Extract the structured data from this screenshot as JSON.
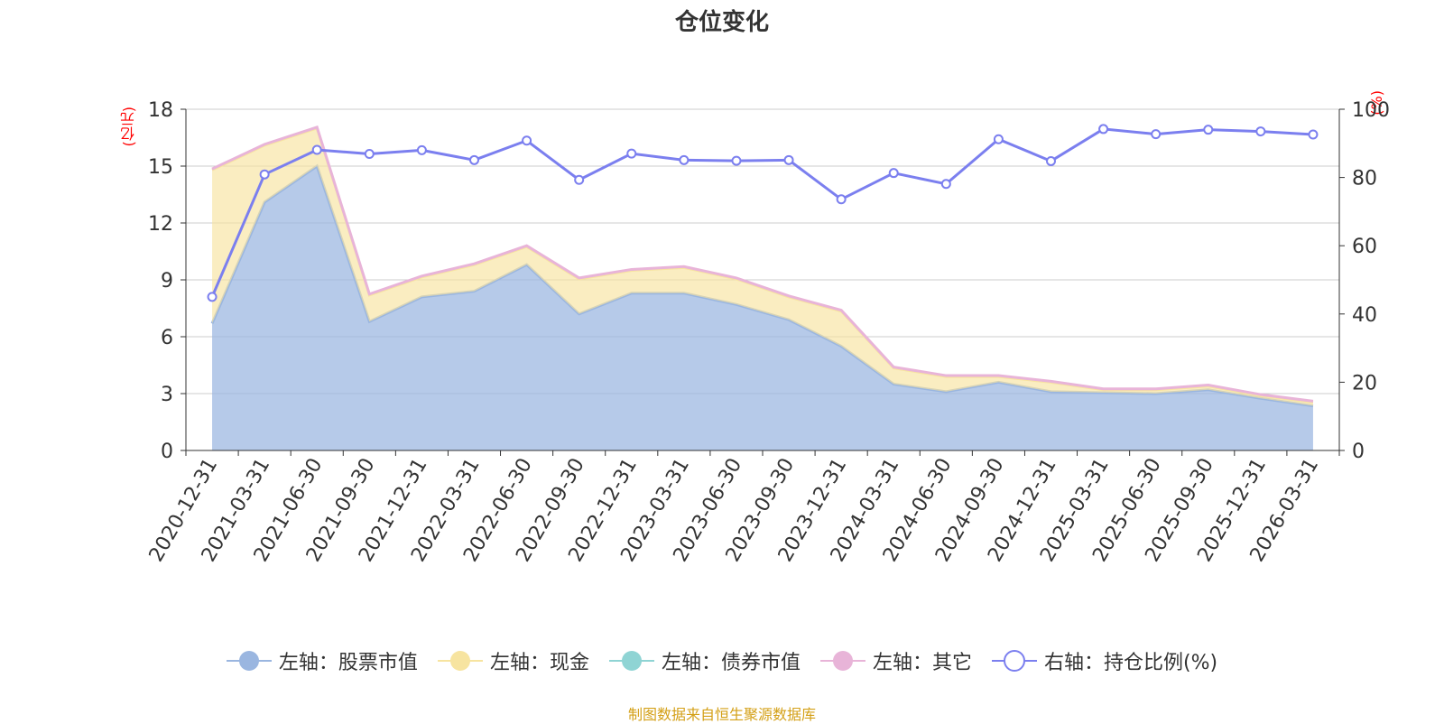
{
  "chart_data": {
    "type": "area",
    "title": "仓位变化",
    "left_axis_unit": "(亿元)",
    "right_axis_unit": "(%)",
    "categories": [
      "2020-12-31",
      "2021-03-31",
      "2021-06-30",
      "2021-09-30",
      "2021-12-31",
      "2022-03-31",
      "2022-06-30",
      "2022-09-30",
      "2022-12-31",
      "2023-03-31",
      "2023-06-30",
      "2023-09-30",
      "2023-12-31",
      "2024-03-31",
      "2024-06-30",
      "2024-09-30",
      "2024-12-31",
      "2025-03-31",
      "2025-06-30",
      "2025-09-30",
      "2025-12-31",
      "2026-03-31"
    ],
    "ylim_left": [
      0,
      18
    ],
    "yticks_left": [
      0,
      3,
      6,
      9,
      12,
      15,
      18
    ],
    "ylim_right": [
      0,
      100
    ],
    "yticks_right": [
      0,
      20,
      40,
      60,
      80,
      100
    ],
    "series": [
      {
        "name": "左轴：股票市值",
        "axis": "left",
        "stack": true,
        "color": "#9ab6e0",
        "values": [
          6.7,
          13.1,
          15.0,
          6.8,
          8.1,
          8.4,
          9.8,
          7.2,
          8.3,
          8.3,
          7.7,
          6.9,
          5.5,
          3.5,
          3.1,
          3.6,
          3.1,
          3.05,
          3.0,
          3.2,
          2.75,
          2.35
        ]
      },
      {
        "name": "左轴：现金",
        "axis": "left",
        "stack": true,
        "color": "#f7e4a0",
        "values": [
          8.1,
          3.0,
          2.0,
          1.4,
          1.05,
          1.4,
          0.95,
          1.85,
          1.2,
          1.35,
          1.35,
          1.2,
          1.85,
          0.85,
          0.8,
          0.3,
          0.5,
          0.15,
          0.2,
          0.2,
          0.15,
          0.2
        ]
      },
      {
        "name": "左轴：债券市值",
        "axis": "left",
        "stack": true,
        "color": "#8fd4d4",
        "values": [
          0,
          0,
          0,
          0,
          0,
          0,
          0,
          0,
          0,
          0,
          0,
          0,
          0,
          0,
          0,
          0,
          0,
          0,
          0,
          0,
          0,
          0
        ]
      },
      {
        "name": "左轴：其它",
        "axis": "left",
        "stack": true,
        "color": "#e8b4d8",
        "values": [
          0.05,
          0.05,
          0.05,
          0.05,
          0.05,
          0.05,
          0.05,
          0.05,
          0.05,
          0.05,
          0.05,
          0.05,
          0.05,
          0.05,
          0.05,
          0.05,
          0.05,
          0.05,
          0.05,
          0.05,
          0.05,
          0.05
        ]
      },
      {
        "name": "右轴：持仓比例(%)",
        "axis": "right",
        "stack": false,
        "color": "#7b7fef",
        "values": [
          45.0,
          80.9,
          88.1,
          86.9,
          88.0,
          85.1,
          90.8,
          79.3,
          87.0,
          85.1,
          84.9,
          85.1,
          73.6,
          81.3,
          78.1,
          91.2,
          84.8,
          94.2,
          92.7,
          94.0,
          93.5,
          92.6
        ]
      }
    ]
  },
  "source": "制图数据来自恒生聚源数据库"
}
